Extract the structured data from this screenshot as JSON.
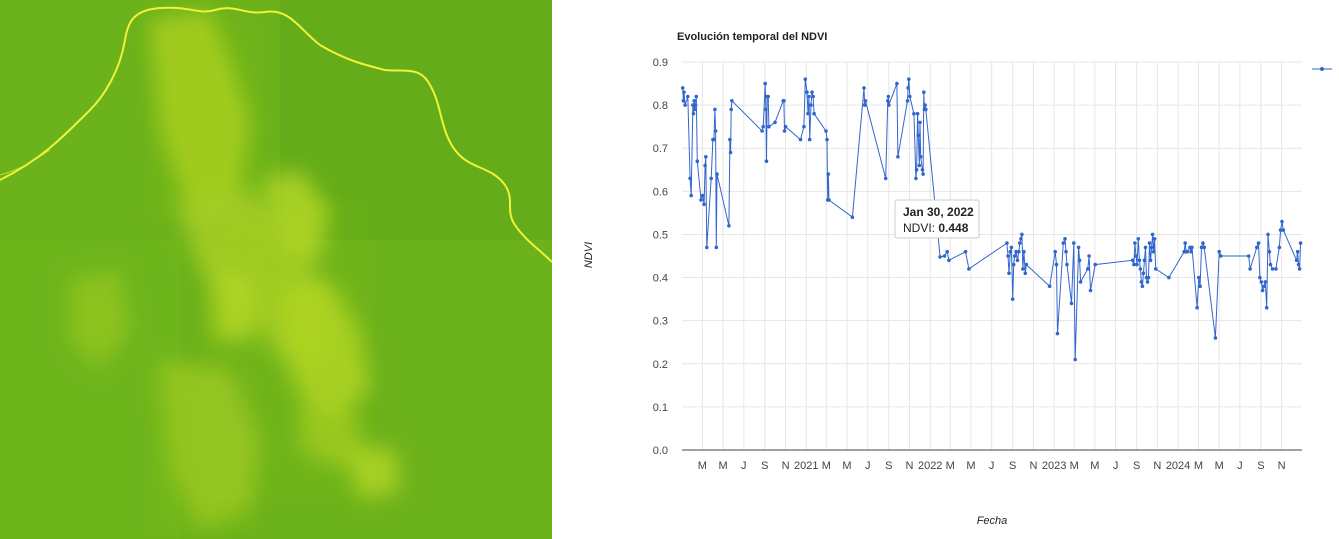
{
  "map": {
    "description_icon": "satellite-ndvi-map",
    "colors": {
      "base": "#6ab11a",
      "bright": "#c8e21c",
      "river": "#f0f23a"
    }
  },
  "chart_data": {
    "type": "line",
    "title": "Evolución temporal del NDVI",
    "xlabel": "Fecha",
    "ylabel": "NDVI",
    "ylim": [
      0,
      0.9
    ],
    "yticks": [
      "0.0",
      "0.1",
      "0.2",
      "0.3",
      "0.4",
      "0.5",
      "0.6",
      "0.7",
      "0.8",
      "0.9"
    ],
    "xlim": [
      "2020-01-01",
      "2024-12-31"
    ],
    "xticks": [
      {
        "label": "M",
        "date": "2020-03-01"
      },
      {
        "label": "M",
        "date": "2020-05-01"
      },
      {
        "label": "J",
        "date": "2020-07-01"
      },
      {
        "label": "S",
        "date": "2020-09-01"
      },
      {
        "label": "N",
        "date": "2020-11-01"
      },
      {
        "label": "2021",
        "date": "2021-01-01"
      },
      {
        "label": "M",
        "date": "2021-03-01"
      },
      {
        "label": "M",
        "date": "2021-05-01"
      },
      {
        "label": "J",
        "date": "2021-07-01"
      },
      {
        "label": "S",
        "date": "2021-09-01"
      },
      {
        "label": "N",
        "date": "2021-11-01"
      },
      {
        "label": "2022",
        "date": "2022-01-01"
      },
      {
        "label": "M",
        "date": "2022-03-01"
      },
      {
        "label": "M",
        "date": "2022-05-01"
      },
      {
        "label": "J",
        "date": "2022-07-01"
      },
      {
        "label": "S",
        "date": "2022-09-01"
      },
      {
        "label": "N",
        "date": "2022-11-01"
      },
      {
        "label": "2023",
        "date": "2023-01-01"
      },
      {
        "label": "M",
        "date": "2023-03-01"
      },
      {
        "label": "M",
        "date": "2023-05-01"
      },
      {
        "label": "J",
        "date": "2023-07-01"
      },
      {
        "label": "S",
        "date": "2023-09-01"
      },
      {
        "label": "N",
        "date": "2023-11-01"
      },
      {
        "label": "2024",
        "date": "2024-01-01"
      },
      {
        "label": "M",
        "date": "2024-03-01"
      },
      {
        "label": "M",
        "date": "2024-05-01"
      },
      {
        "label": "J",
        "date": "2024-07-01"
      },
      {
        "label": "S",
        "date": "2024-09-01"
      },
      {
        "label": "N",
        "date": "2024-11-01"
      }
    ],
    "grid": true,
    "legend_position": "top-right",
    "colors": {
      "series": "#3366cc",
      "grid": "#e6e6e6",
      "axis": "#444444"
    },
    "series": [
      {
        "name": "",
        "points": [
          [
            "2020-01-03",
            0.84
          ],
          [
            "2020-01-05",
            0.81
          ],
          [
            "2020-01-07",
            0.83
          ],
          [
            "2020-01-10",
            0.8
          ],
          [
            "2020-01-18",
            0.82
          ],
          [
            "2020-01-25",
            0.63
          ],
          [
            "2020-01-28",
            0.59
          ],
          [
            "2020-02-02",
            0.8
          ],
          [
            "2020-02-04",
            0.78
          ],
          [
            "2020-02-06",
            0.81
          ],
          [
            "2020-02-08",
            0.79
          ],
          [
            "2020-02-10",
            0.8
          ],
          [
            "2020-02-12",
            0.82
          ],
          [
            "2020-02-15",
            0.67
          ],
          [
            "2020-02-26",
            0.58
          ],
          [
            "2020-03-02",
            0.59
          ],
          [
            "2020-03-06",
            0.57
          ],
          [
            "2020-03-09",
            0.66
          ],
          [
            "2020-03-11",
            0.68
          ],
          [
            "2020-03-14",
            0.47
          ],
          [
            "2020-03-27",
            0.63
          ],
          [
            "2020-04-01",
            0.72
          ],
          [
            "2020-04-04",
            0.72
          ],
          [
            "2020-04-07",
            0.79
          ],
          [
            "2020-04-09",
            0.74
          ],
          [
            "2020-04-11",
            0.47
          ],
          [
            "2020-04-13",
            0.64
          ],
          [
            "2020-05-18",
            0.52
          ],
          [
            "2020-05-21",
            0.72
          ],
          [
            "2020-05-23",
            0.69
          ],
          [
            "2020-05-25",
            0.79
          ],
          [
            "2020-05-27",
            0.81
          ],
          [
            "2020-08-24",
            0.74
          ],
          [
            "2020-08-27",
            0.75
          ],
          [
            "2020-09-02",
            0.85
          ],
          [
            "2020-09-04",
            0.79
          ],
          [
            "2020-09-06",
            0.67
          ],
          [
            "2020-09-08",
            0.82
          ],
          [
            "2020-09-11",
            0.82
          ],
          [
            "2020-09-13",
            0.75
          ],
          [
            "2020-10-01",
            0.76
          ],
          [
            "2020-10-25",
            0.81
          ],
          [
            "2020-10-27",
            0.81
          ],
          [
            "2020-10-29",
            0.74
          ],
          [
            "2020-11-01",
            0.75
          ],
          [
            "2020-12-15",
            0.72
          ],
          [
            "2020-12-25",
            0.75
          ],
          [
            "2020-12-29",
            0.86
          ],
          [
            "2021-01-03",
            0.83
          ],
          [
            "2021-01-06",
            0.78
          ],
          [
            "2021-01-09",
            0.82
          ],
          [
            "2021-01-11",
            0.72
          ],
          [
            "2021-01-15",
            0.8
          ],
          [
            "2021-01-18",
            0.83
          ],
          [
            "2021-01-21",
            0.82
          ],
          [
            "2021-01-24",
            0.78
          ],
          [
            "2021-02-28",
            0.74
          ],
          [
            "2021-03-03",
            0.72
          ],
          [
            "2021-03-05",
            0.58
          ],
          [
            "2021-03-07",
            0.64
          ],
          [
            "2021-03-09",
            0.58
          ],
          [
            "2021-05-17",
            0.54
          ],
          [
            "2021-06-20",
            0.84
          ],
          [
            "2021-06-22",
            0.8
          ],
          [
            "2021-06-24",
            0.81
          ],
          [
            "2021-08-23",
            0.63
          ],
          [
            "2021-08-29",
            0.81
          ],
          [
            "2021-08-31",
            0.82
          ],
          [
            "2021-09-01",
            0.8
          ],
          [
            "2021-09-25",
            0.85
          ],
          [
            "2021-09-28",
            0.68
          ],
          [
            "2021-10-26",
            0.81
          ],
          [
            "2021-10-28",
            0.84
          ],
          [
            "2021-10-30",
            0.86
          ],
          [
            "2021-11-02",
            0.82
          ],
          [
            "2021-11-14",
            0.78
          ],
          [
            "2021-11-20",
            0.63
          ],
          [
            "2021-11-22",
            0.65
          ],
          [
            "2021-11-25",
            0.78
          ],
          [
            "2021-11-27",
            0.73
          ],
          [
            "2021-11-30",
            0.66
          ],
          [
            "2021-12-02",
            0.76
          ],
          [
            "2021-12-04",
            0.68
          ],
          [
            "2021-12-09",
            0.65
          ],
          [
            "2021-12-11",
            0.64
          ],
          [
            "2021-12-13",
            0.83
          ],
          [
            "2021-12-15",
            0.79
          ],
          [
            "2021-12-17",
            0.8
          ],
          [
            "2021-12-19",
            0.79
          ],
          [
            "2022-01-30",
            0.448
          ],
          [
            "2022-02-12",
            0.45
          ],
          [
            "2022-02-20",
            0.46
          ],
          [
            "2022-02-25",
            0.44
          ],
          [
            "2022-04-15",
            0.46
          ],
          [
            "2022-04-25",
            0.42
          ],
          [
            "2022-08-15",
            0.48
          ],
          [
            "2022-08-18",
            0.45
          ],
          [
            "2022-08-21",
            0.41
          ],
          [
            "2022-08-25",
            0.46
          ],
          [
            "2022-08-28",
            0.47
          ],
          [
            "2022-09-01",
            0.35
          ],
          [
            "2022-09-04",
            0.43
          ],
          [
            "2022-09-07",
            0.45
          ],
          [
            "2022-09-11",
            0.46
          ],
          [
            "2022-09-15",
            0.44
          ],
          [
            "2022-09-19",
            0.46
          ],
          [
            "2022-09-22",
            0.48
          ],
          [
            "2022-09-25",
            0.49
          ],
          [
            "2022-09-28",
            0.5
          ],
          [
            "2022-10-01",
            0.42
          ],
          [
            "2022-10-04",
            0.46
          ],
          [
            "2022-10-08",
            0.41
          ],
          [
            "2022-10-11",
            0.43
          ],
          [
            "2022-12-19",
            0.38
          ],
          [
            "2023-01-04",
            0.46
          ],
          [
            "2023-01-08",
            0.43
          ],
          [
            "2023-01-11",
            0.27
          ],
          [
            "2023-01-28",
            0.48
          ],
          [
            "2023-02-02",
            0.49
          ],
          [
            "2023-02-05",
            0.46
          ],
          [
            "2023-02-08",
            0.43
          ],
          [
            "2023-02-21",
            0.34
          ],
          [
            "2023-02-28",
            0.48
          ],
          [
            "2023-03-04",
            0.21
          ],
          [
            "2023-03-14",
            0.47
          ],
          [
            "2023-03-17",
            0.44
          ],
          [
            "2023-03-20",
            0.39
          ],
          [
            "2023-04-10",
            0.42
          ],
          [
            "2023-04-14",
            0.45
          ],
          [
            "2023-04-18",
            0.37
          ],
          [
            "2023-05-02",
            0.43
          ],
          [
            "2023-08-20",
            0.44
          ],
          [
            "2023-08-24",
            0.43
          ],
          [
            "2023-08-27",
            0.48
          ],
          [
            "2023-08-30",
            0.45
          ],
          [
            "2023-09-02",
            0.43
          ],
          [
            "2023-09-06",
            0.49
          ],
          [
            "2023-09-09",
            0.44
          ],
          [
            "2023-09-12",
            0.42
          ],
          [
            "2023-09-15",
            0.39
          ],
          [
            "2023-09-18",
            0.38
          ],
          [
            "2023-09-21",
            0.41
          ],
          [
            "2023-09-24",
            0.44
          ],
          [
            "2023-09-27",
            0.47
          ],
          [
            "2023-09-30",
            0.4
          ],
          [
            "2023-10-03",
            0.39
          ],
          [
            "2023-10-06",
            0.4
          ],
          [
            "2023-10-09",
            0.48
          ],
          [
            "2023-10-12",
            0.44
          ],
          [
            "2023-10-15",
            0.47
          ],
          [
            "2023-10-18",
            0.5
          ],
          [
            "2023-10-21",
            0.46
          ],
          [
            "2023-10-24",
            0.49
          ],
          [
            "2023-10-27",
            0.42
          ],
          [
            "2023-12-05",
            0.4
          ],
          [
            "2024-01-19",
            0.46
          ],
          [
            "2024-01-22",
            0.48
          ],
          [
            "2024-01-25",
            0.46
          ],
          [
            "2024-01-28",
            0.46
          ],
          [
            "2024-02-05",
            0.47
          ],
          [
            "2024-02-08",
            0.46
          ],
          [
            "2024-02-11",
            0.47
          ],
          [
            "2024-02-26",
            0.33
          ],
          [
            "2024-03-02",
            0.4
          ],
          [
            "2024-03-06",
            0.38
          ],
          [
            "2024-03-10",
            0.47
          ],
          [
            "2024-03-14",
            0.48
          ],
          [
            "2024-03-18",
            0.47
          ],
          [
            "2024-04-20",
            0.26
          ],
          [
            "2024-05-01",
            0.46
          ],
          [
            "2024-05-06",
            0.45
          ],
          [
            "2024-07-27",
            0.45
          ],
          [
            "2024-07-31",
            0.42
          ],
          [
            "2024-08-20",
            0.47
          ],
          [
            "2024-08-25",
            0.48
          ],
          [
            "2024-08-29",
            0.4
          ],
          [
            "2024-09-02",
            0.39
          ],
          [
            "2024-09-06",
            0.37
          ],
          [
            "2024-09-10",
            0.38
          ],
          [
            "2024-09-14",
            0.39
          ],
          [
            "2024-09-18",
            0.33
          ],
          [
            "2024-09-22",
            0.5
          ],
          [
            "2024-09-26",
            0.46
          ],
          [
            "2024-09-29",
            0.43
          ],
          [
            "2024-10-05",
            0.42
          ],
          [
            "2024-10-15",
            0.42
          ],
          [
            "2024-10-25",
            0.47
          ],
          [
            "2024-10-29",
            0.51
          ],
          [
            "2024-11-02",
            0.53
          ],
          [
            "2024-11-06",
            0.51
          ],
          [
            "2024-12-15",
            0.44
          ],
          [
            "2024-12-18",
            0.46
          ],
          [
            "2024-12-21",
            0.43
          ],
          [
            "2024-12-24",
            0.42
          ],
          [
            "2024-12-27",
            0.48
          ]
        ]
      }
    ],
    "tooltip": {
      "date": "Jan 30, 2022",
      "label": "NDVI: ",
      "value": "0.448"
    }
  }
}
